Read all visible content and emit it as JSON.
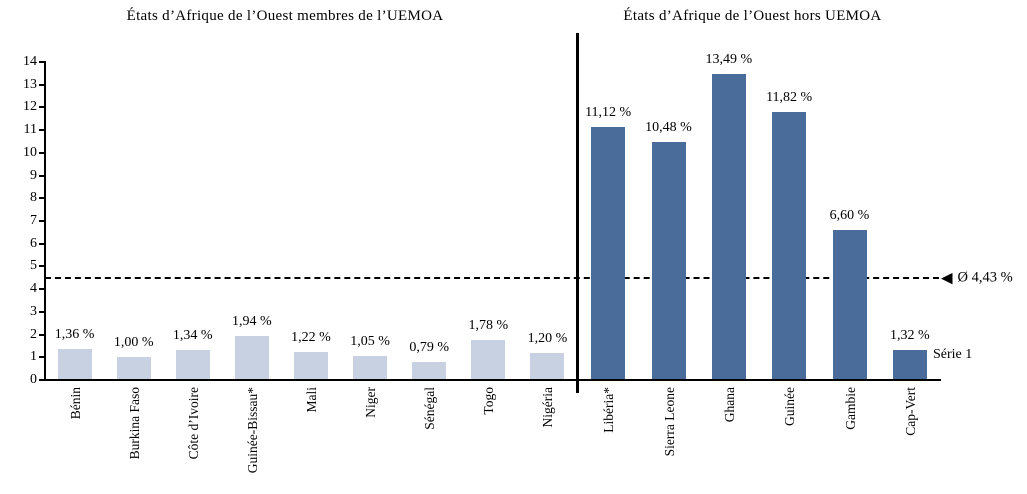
{
  "chart_data": {
    "type": "bar",
    "title_left": "États d’Afrique de l’Ouest membres de l’UEMOA",
    "title_right": "États d’Afrique de l’Ouest hors UEMOA",
    "xlabel": "",
    "ylabel": "",
    "ylim": [
      0,
      14
    ],
    "yticks": [
      0,
      1,
      2,
      3,
      4,
      5,
      6,
      7,
      8,
      9,
      10,
      11,
      12,
      13,
      14
    ],
    "grid": false,
    "legend_position": "none",
    "groups": [
      {
        "name": "UEMOA members",
        "bar_color": "#c7d1e2",
        "categories": [
          "Bénin",
          "Burkina Faso",
          "Côte d’Ivoire",
          "Guinée-Bissau*",
          "Mali",
          "Niger",
          "Sénégal",
          "Togo",
          "Nigéria"
        ],
        "values": [
          1.36,
          1.0,
          1.34,
          1.94,
          1.22,
          1.05,
          0.79,
          1.78,
          1.2
        ],
        "value_labels": [
          "1,36 %",
          "1,00 %",
          "1,34 %",
          "1,94 %",
          "1,22 %",
          "1,05 %",
          "0,79 %",
          "1,78 %",
          "1,20 %"
        ]
      },
      {
        "name": "hors UEMOA",
        "bar_color": "#4a6c9b",
        "categories": [
          "Libéria*",
          "Sierra Leone",
          "Ghana",
          "Guinée",
          "Gambie",
          "Cap-Vert"
        ],
        "values": [
          11.12,
          10.48,
          13.49,
          11.82,
          6.6,
          1.32
        ],
        "value_labels": [
          "11,12 %",
          "10,48 %",
          "13,49 %",
          "11,82 %",
          "6,60 %",
          "1,32 %"
        ]
      }
    ],
    "average_line": {
      "value": 4.43,
      "label": "Ø 4,43 %",
      "style": "dashed",
      "color": "#000000"
    },
    "series_label": "Série 1",
    "colors": {
      "axis": "#000000",
      "text": "#000000",
      "divider": "#000000"
    }
  }
}
